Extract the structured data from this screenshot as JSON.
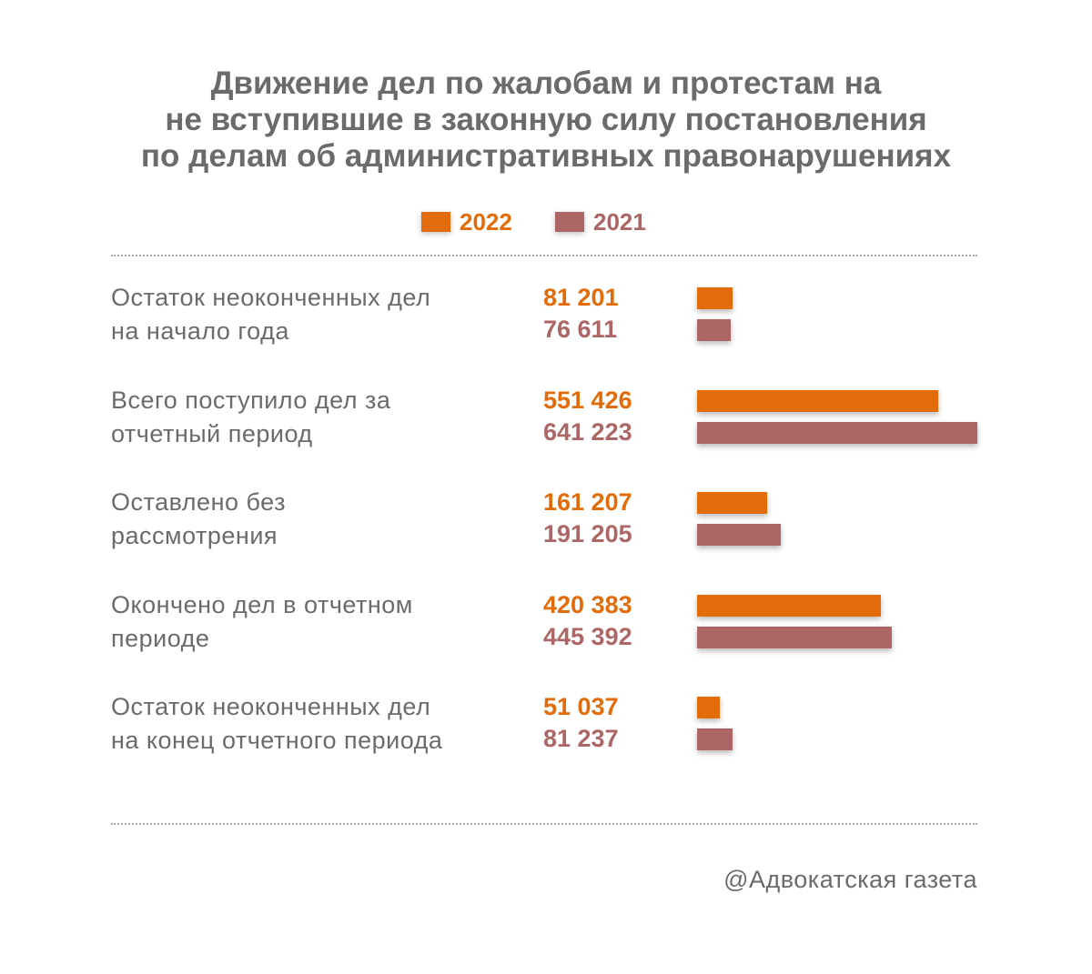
{
  "title_lines": [
    "Движение дел по жалобам и протестам на",
    "не вступившие в законную силу постановления",
    "по делам об административных правонарушениях"
  ],
  "credit": "@Адвокатская газета",
  "colors": {
    "2022": "#e36c0a",
    "2021": "#ac6666",
    "text": "#6b6b6b"
  },
  "chart_data": {
    "type": "bar",
    "orientation": "horizontal",
    "title": "Движение дел по жалобам и протестам на не вступившие в законную силу постановления по делам об административных правонарушениях",
    "legend_position": "top-center",
    "grid": false,
    "xlim": [
      0,
      641223
    ],
    "categories": [
      "Остаток неоконченных дел на начало года",
      "Всего поступило дел за отчетный период",
      "Оставлено без рассмотрения",
      "Окончено дел в отчетном периоде",
      "Остаток неоконченных дел на конец отчетного периода"
    ],
    "category_lines": [
      [
        "Остаток неоконченных дел",
        "на начало года"
      ],
      [
        "Всего поступило дел за",
        "отчетный период"
      ],
      [
        "Оставлено без",
        "рассмотрения"
      ],
      [
        "Окончено дел в отчетном",
        "периоде"
      ],
      [
        "Остаток неоконченных дел",
        "на конец отчетного периода"
      ]
    ],
    "series": [
      {
        "name": "2022",
        "color": "#e36c0a",
        "values": [
          81201,
          551426,
          161207,
          420383,
          51037
        ],
        "labels": [
          "81 201",
          "551 426",
          "161 207",
          "420 383",
          "51 037"
        ]
      },
      {
        "name": "2021",
        "color": "#ac6666",
        "values": [
          76611,
          641223,
          191205,
          445392,
          81237
        ],
        "labels": [
          "76 611",
          "641 223",
          "191 205",
          "445 392",
          "81 237"
        ]
      }
    ]
  }
}
